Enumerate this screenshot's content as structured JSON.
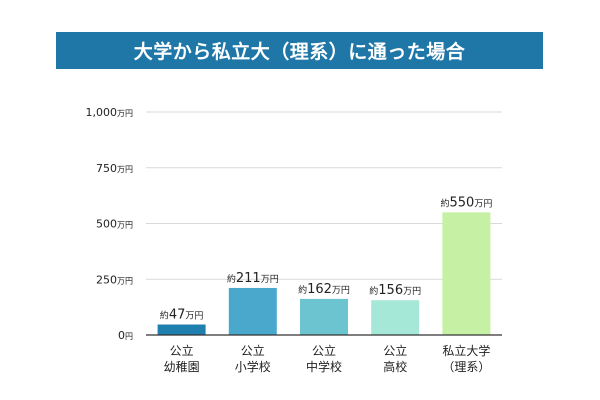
{
  "title": "大学から私立大（理系）に通った場合",
  "colors": {
    "banner": "#1f77a8",
    "grid": "#d9d9d9",
    "axis": "#333333",
    "text": "#222222"
  },
  "chart_data": {
    "type": "bar",
    "title": "大学から私立大（理系）に通った場合",
    "xlabel": "",
    "ylabel": "",
    "unit": "万円",
    "ylim": [
      0,
      1000
    ],
    "grid": true,
    "y_ticks": [
      {
        "value": 0,
        "label": "0",
        "unit": "円"
      },
      {
        "value": 250,
        "label": "250",
        "unit": "万円"
      },
      {
        "value": 500,
        "label": "500",
        "unit": "万円"
      },
      {
        "value": 750,
        "label": "750",
        "unit": "万円"
      },
      {
        "value": 1000,
        "label": "1,000",
        "unit": "万円"
      }
    ],
    "bars": [
      {
        "category_lines": [
          "公立",
          "幼稚園"
        ],
        "value": 47,
        "prefix": "約",
        "label": "47",
        "suffix": "万円",
        "color": "#1f7fae"
      },
      {
        "category_lines": [
          "公立",
          "小学校"
        ],
        "value": 211,
        "prefix": "約",
        "label": "211",
        "suffix": "万円",
        "color": "#4aa8cd"
      },
      {
        "category_lines": [
          "公立",
          "中学校"
        ],
        "value": 162,
        "prefix": "約",
        "label": "162",
        "suffix": "万円",
        "color": "#6cc4d0"
      },
      {
        "category_lines": [
          "公立",
          "高校"
        ],
        "value": 156,
        "prefix": "約",
        "label": "156",
        "suffix": "万円",
        "color": "#a6e8d8"
      },
      {
        "category_lines": [
          "私立大学",
          "（理系）"
        ],
        "value": 550,
        "prefix": "約",
        "label": "550",
        "suffix": "万円",
        "color": "#c6f0a3"
      }
    ]
  }
}
